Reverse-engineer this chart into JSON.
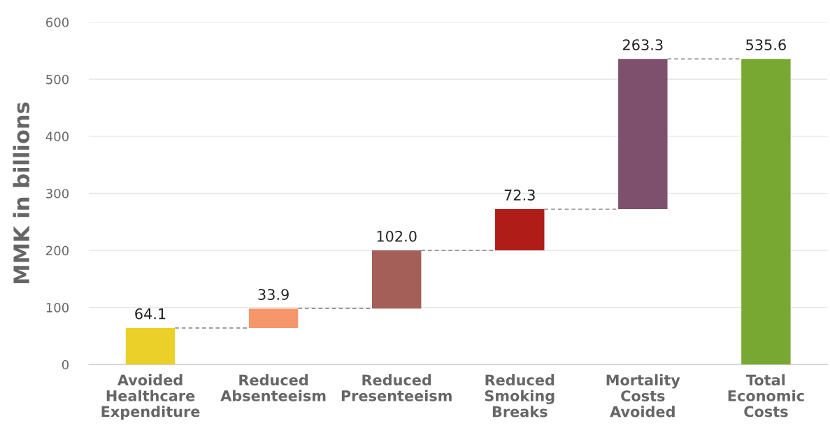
{
  "chart_data": {
    "type": "bar",
    "ylabel": "MMK in billions",
    "categories": [
      "Avoided\nHealthcare\nExpenditure",
      "Reduced\nAbsenteeism",
      "Reduced\nPresenteeism",
      "Reduced\nSmoking\nBreaks",
      "Mortality\nCosts\nAvoided",
      "Total\nEconomic\nCosts"
    ],
    "values": [
      64.1,
      33.9,
      102.0,
      72.3,
      263.3,
      535.6
    ],
    "base": [
      0,
      64.1,
      98.0,
      200.0,
      272.3,
      0
    ],
    "colors": [
      "#ecd02a",
      "#f5976a",
      "#a45f58",
      "#b01d19",
      "#7e506e",
      "#78a832"
    ],
    "value_labels": [
      "64.1",
      "33.9",
      "102.0",
      "72.3",
      "263.3",
      "535.6"
    ],
    "ylim": [
      0,
      600
    ],
    "yticks": [
      0,
      100,
      200,
      300,
      400,
      500,
      600
    ],
    "grid": "y"
  }
}
